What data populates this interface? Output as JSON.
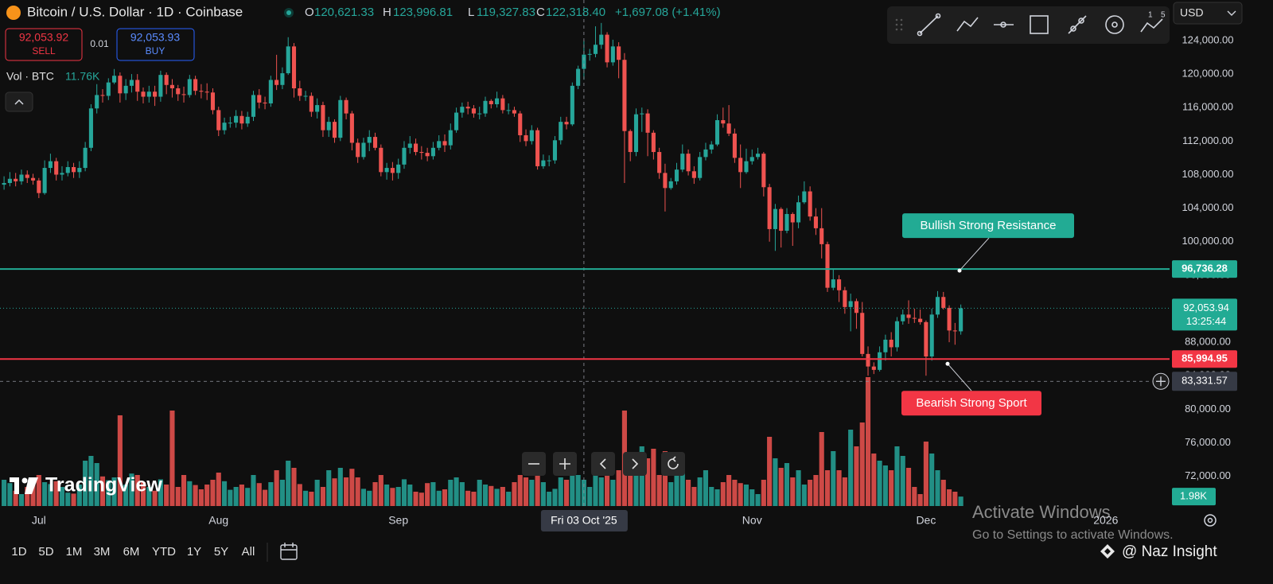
{
  "chart_data": {
    "type": "candlestick",
    "open": [
      106800,
      107000,
      107500,
      107200,
      108000,
      107600,
      107300,
      105800,
      108800,
      109600,
      108000,
      108200,
      108900,
      108300,
      108800,
      111200,
      115900,
      117500,
      117400,
      119000,
      119800,
      117700,
      118600,
      119300,
      117900,
      117300,
      117900,
      117300,
      119900,
      118700,
      118300,
      117600,
      117500,
      119400,
      118000,
      117900,
      117800,
      115700,
      113300,
      114200,
      114200,
      115000,
      114100,
      114900,
      117500,
      116600,
      116500,
      119300,
      118700,
      120100,
      123300,
      118300,
      117400,
      117400,
      115500,
      116300,
      113300,
      114300,
      112400,
      116900,
      115300,
      111800,
      110100,
      111800,
      112500,
      111200,
      108300,
      108800,
      108200,
      109200,
      111200,
      111700,
      110700,
      110600,
      110200,
      111200,
      112000,
      111500,
      113300,
      115400,
      116100,
      115900,
      115300,
      115300,
      116800,
      116400,
      117100,
      115700,
      115700,
      115300,
      112700,
      112000,
      113300,
      109000,
      109700,
      109700,
      112100,
      114300,
      114000,
      118600,
      120621.33,
      122318.4,
      122400,
      123500,
      124700,
      121400,
      123300,
      121700,
      113200,
      110700,
      115200,
      115300,
      113000,
      110700,
      108200,
      106400,
      107200,
      108600,
      110500,
      108400,
      107600,
      110100,
      111000,
      111600,
      114500,
      114100,
      112900,
      110000,
      108300,
      109600,
      110100,
      110500,
      106500,
      101500,
      103900,
      101300,
      103300,
      102300,
      104700,
      106000,
      103000,
      101600,
      99700,
      94500,
      95500,
      94200,
      92200,
      92900,
      91500,
      86600,
      85100,
      84700,
      86800,
      88300,
      87400,
      90500,
      91300,
      90900,
      90800,
      90400,
      86300,
      91300,
      93400,
      92100,
      89400,
      89300
    ],
    "high": [
      107800,
      108300,
      108200,
      108600,
      108500,
      108100,
      107600,
      109700,
      110500,
      110000,
      109000,
      109600,
      109400,
      109600,
      111900,
      116400,
      118800,
      118200,
      119500,
      120600,
      120200,
      119400,
      120000,
      120000,
      118400,
      118600,
      118600,
      120400,
      120200,
      119400,
      118700,
      118500,
      119900,
      119800,
      118800,
      118900,
      118300,
      116100,
      114800,
      114900,
      115700,
      115600,
      115500,
      118000,
      118200,
      117300,
      119800,
      122300,
      120800,
      124400,
      123700,
      119200,
      118000,
      117800,
      117100,
      116700,
      114900,
      114600,
      117400,
      117200,
      115600,
      112300,
      112400,
      113300,
      113000,
      111600,
      109400,
      109500,
      109900,
      112000,
      112600,
      112300,
      111400,
      111200,
      111900,
      112700,
      112800,
      114100,
      116000,
      116600,
      116700,
      116300,
      116100,
      117300,
      117000,
      117900,
      117500,
      116500,
      116100,
      115600,
      113400,
      113900,
      113600,
      110400,
      110300,
      112600,
      114900,
      114900,
      119000,
      121000,
      123996.81,
      123000,
      125700,
      126100,
      125000,
      124100,
      123800,
      122500,
      113400,
      115900,
      116000,
      115800,
      113300,
      111200,
      109300,
      107600,
      109400,
      111600,
      111000,
      109000,
      110700,
      111800,
      112000,
      115200,
      116000,
      116300,
      113500,
      111600,
      111100,
      111000,
      111200,
      110700,
      106900,
      104500,
      104100,
      104000,
      103500,
      105500,
      107200,
      106600,
      104000,
      104000,
      100000,
      96800,
      96000,
      94600,
      93800,
      93200,
      92800,
      87500,
      85600,
      87500,
      88900,
      89200,
      91000,
      91900,
      93000,
      92000,
      91900,
      90600,
      92000,
      94100,
      94000,
      92400,
      90300,
      92500
    ],
    "low": [
      106200,
      106600,
      106600,
      106800,
      107000,
      106800,
      105200,
      105600,
      108200,
      107300,
      107300,
      107800,
      107600,
      107600,
      108400,
      110800,
      115300,
      116600,
      116900,
      118800,
      116600,
      116900,
      117800,
      116800,
      116500,
      116600,
      116200,
      116700,
      117600,
      117200,
      116800,
      116600,
      117200,
      117500,
      117100,
      116900,
      115200,
      112600,
      112800,
      113600,
      113600,
      113400,
      113700,
      114400,
      115900,
      115800,
      116100,
      118100,
      118200,
      119900,
      117200,
      116800,
      116800,
      114900,
      114700,
      112500,
      112500,
      111800,
      112000,
      114600,
      110900,
      109400,
      109800,
      110800,
      110900,
      107800,
      107400,
      107300,
      107500,
      108700,
      110500,
      110300,
      109800,
      109600,
      109800,
      110900,
      110700,
      111000,
      113000,
      114800,
      115200,
      114800,
      114600,
      114900,
      115900,
      116000,
      115300,
      115200,
      114900,
      111900,
      111400,
      111600,
      108600,
      108700,
      109000,
      109300,
      111600,
      113400,
      113800,
      118200,
      119327.83,
      121600,
      122000,
      123000,
      120800,
      121000,
      119500,
      107000,
      109600,
      110200,
      113100,
      110200,
      109800,
      107500,
      103600,
      106200,
      106800,
      108300,
      107900,
      106900,
      107300,
      109700,
      110500,
      111400,
      113600,
      112600,
      109400,
      106400,
      108100,
      109200,
      109800,
      105400,
      100000,
      98900,
      99300,
      101000,
      99500,
      101600,
      104500,
      102500,
      100800,
      98000,
      94000,
      94200,
      92800,
      91400,
      89300,
      89600,
      86300,
      84000,
      84200,
      84500,
      85800,
      86300,
      86900,
      90100,
      90200,
      90300,
      90100,
      84000,
      85800,
      90900,
      91900,
      88000,
      87700,
      88900
    ],
    "close": [
      107000,
      107500,
      107200,
      108000,
      107600,
      107300,
      105800,
      108800,
      109600,
      108000,
      108200,
      108900,
      108300,
      108800,
      111200,
      115900,
      117500,
      117400,
      119000,
      119800,
      117700,
      118600,
      119300,
      117900,
      117300,
      117900,
      117300,
      119900,
      118700,
      118300,
      117600,
      117500,
      119400,
      118000,
      117900,
      117800,
      115700,
      113300,
      114200,
      114200,
      115000,
      114100,
      114900,
      117500,
      116600,
      116500,
      119300,
      118700,
      120100,
      123300,
      118300,
      117400,
      117400,
      115500,
      116300,
      113300,
      114300,
      112400,
      116900,
      115300,
      111800,
      110100,
      111800,
      112500,
      111200,
      108300,
      108800,
      108200,
      109200,
      111200,
      111700,
      110700,
      110600,
      110200,
      111200,
      112000,
      111500,
      113300,
      115400,
      116100,
      115900,
      115300,
      115300,
      116800,
      116400,
      117100,
      115700,
      115700,
      115300,
      112700,
      112000,
      113300,
      109000,
      109700,
      109700,
      112100,
      114300,
      114000,
      118600,
      120621.33,
      122318.4,
      122400,
      123500,
      124700,
      121400,
      123300,
      121700,
      113200,
      110700,
      115200,
      115300,
      113000,
      110700,
      108200,
      106400,
      107200,
      108600,
      110500,
      108400,
      107600,
      110100,
      111000,
      111600,
      114500,
      114100,
      112900,
      110000,
      108300,
      109600,
      110100,
      110500,
      106500,
      101500,
      103900,
      101300,
      103300,
      102300,
      104700,
      106000,
      103000,
      101600,
      99700,
      94500,
      95500,
      94200,
      92200,
      92900,
      91500,
      86600,
      85100,
      84700,
      86800,
      88300,
      87400,
      90500,
      91300,
      90900,
      90800,
      90400,
      86300,
      91300,
      93400,
      92100,
      89400,
      89300,
      92053.94
    ],
    "volume": [
      5500,
      4800,
      3200,
      2500,
      4000,
      5000,
      6500,
      5000,
      4600,
      5200,
      4000,
      2800,
      2600,
      4500,
      9500,
      10500,
      9000,
      6200,
      5400,
      6000,
      19000,
      4500,
      6800,
      6500,
      5000,
      4000,
      3200,
      5600,
      4500,
      20000,
      4000,
      6500,
      5200,
      4400,
      3500,
      4500,
      5500,
      7000,
      5200,
      3400,
      4000,
      4500,
      3800,
      6500,
      4800,
      3400,
      5000,
      7500,
      5500,
      9500,
      8000,
      4600,
      3200,
      3000,
      5500,
      4000,
      7500,
      5800,
      8000,
      6000,
      7800,
      6000,
      3600,
      3200,
      5000,
      6500,
      4500,
      3800,
      4000,
      5600,
      4500,
      3000,
      2800,
      4800,
      5000,
      3200,
      3500,
      5500,
      6000,
      5000,
      3200,
      3000,
      5500,
      4500,
      4200,
      3600,
      4000,
      3000,
      5000,
      6500,
      6000,
      5500,
      7500,
      5000,
      3000,
      3600,
      6000,
      5500,
      8000,
      6500,
      5500,
      4000,
      7000,
      6000,
      9500,
      5500,
      7500,
      20000,
      11000,
      9000,
      12500,
      10000,
      12000,
      6500,
      11500,
      5000,
      7000,
      7500,
      5500,
      4000,
      6000,
      7500,
      4000,
      3500,
      5000,
      6500,
      5500,
      4800,
      4500,
      3500,
      2500,
      5500,
      14500,
      10000,
      8000,
      9000,
      6000,
      7500,
      4500,
      5500,
      6500,
      15500,
      7500,
      11500,
      7500,
      6000,
      16000,
      12500,
      17500,
      27000,
      11000,
      9500,
      8500,
      7500,
      12500,
      10500,
      8000,
      4000,
      2500,
      13500,
      11000,
      7500,
      5500,
      3500,
      3000,
      1980
    ],
    "up_color": "#26a69a",
    "down_color": "#ef5350",
    "xlim": [
      -0.7,
      201
    ],
    "xticks": [
      {
        "value": 6,
        "label": "Jul"
      },
      {
        "value": 37,
        "label": "Aug"
      },
      {
        "value": 68,
        "label": "Sep"
      },
      {
        "value": 129,
        "label": "Nov"
      },
      {
        "value": 159,
        "label": "Dec"
      },
      {
        "value": 190,
        "label": "2026"
      }
    ],
    "ylim": [
      68450,
      128840
    ],
    "yticks": [
      {
        "value": 72000,
        "label": "72,000.00"
      },
      {
        "value": 76000,
        "label": "76,000.00"
      },
      {
        "value": 80000,
        "label": "80,000.00"
      },
      {
        "value": 84000,
        "label": "84,000.00"
      },
      {
        "value": 88000,
        "label": "88,000.00"
      },
      {
        "value": 92000,
        "label": "92,000.00"
      },
      {
        "value": 96000,
        "label": "96,000.00"
      },
      {
        "value": 100000,
        "label": "100,000.00"
      },
      {
        "value": 104000,
        "label": "104,000.00"
      },
      {
        "value": 108000,
        "label": "108,000.00"
      },
      {
        "value": 112000,
        "label": "112,000.00"
      },
      {
        "value": 116000,
        "label": "116,000.00"
      },
      {
        "value": 120000,
        "label": "120,000.00"
      },
      {
        "value": 124000,
        "label": "124,000.00"
      }
    ],
    "volume_ylim": [
      0,
      106000
    ],
    "volume_last_label": "1.98K",
    "grid": false,
    "hlines": [
      {
        "value": 96736.28,
        "label": "96,736.28",
        "color": "#22ab94",
        "annotation": "Bullish Strong Resistance"
      },
      {
        "value": 85994.95,
        "label": "85,994.95",
        "color": "#f23645",
        "annotation": "Bearish Strong Sport"
      }
    ],
    "last_price": {
      "value": 92053.94,
      "label": "92,053.94",
      "countdown": "13:25:44"
    },
    "crosshair": {
      "index": 100,
      "date_label": "Fri 03 Oct '25",
      "price": 83331.57,
      "price_label": "83,331.57"
    }
  },
  "header": {
    "symbol": "Bitcoin / U.S. Dollar · 1D · Coinbase",
    "ohlc": [
      {
        "key": "O",
        "value": "120,621.33"
      },
      {
        "key": "H",
        "value": "123,996.81"
      },
      {
        "key": "L",
        "value": "119,327.83"
      },
      {
        "key": "C",
        "value": "122,318.40"
      }
    ],
    "change": "+1,697.08 (+1.41%)"
  },
  "trade": {
    "sell_price": "92,053.92",
    "sell": "SELL",
    "spread": "0.01",
    "buy_price": "92,053.93",
    "buy": "BUY"
  },
  "volume_legend": {
    "label": "Vol · BTC",
    "value": "11.76K"
  },
  "logo": "TradingView",
  "currency": "USD",
  "toolbar_badges": [
    "1",
    "5"
  ],
  "timeframes": [
    "1D",
    "5D",
    "1M",
    "3M",
    "6M",
    "YTD",
    "1Y",
    "5Y",
    "All"
  ],
  "watermark": {
    "activate": "Activate Windows",
    "settings": "Go to Settings to activate Windows.",
    "author": "@ Naz Insight"
  }
}
